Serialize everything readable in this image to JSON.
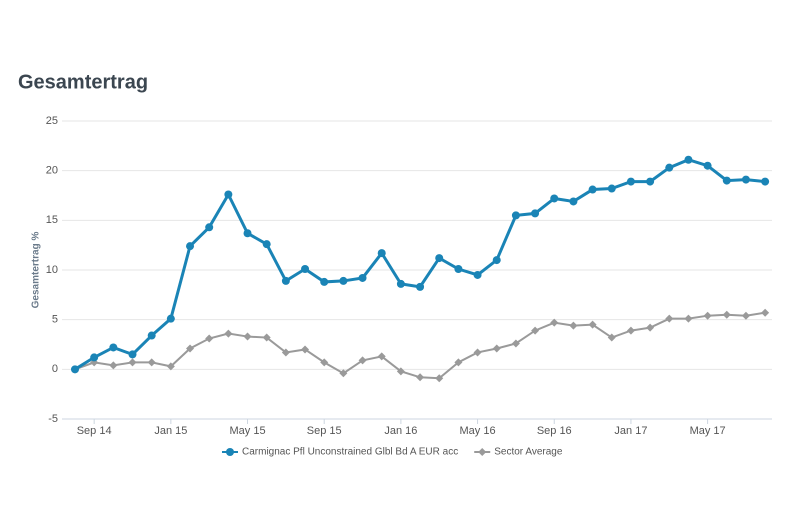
{
  "chart_data": {
    "type": "line",
    "title": "Gesamtertrag",
    "ylabel": "Gesamtertrag %",
    "categories": [
      null,
      "Sep 14",
      null,
      null,
      null,
      "Jan 15",
      null,
      null,
      null,
      "May 15",
      null,
      null,
      null,
      "Sep 15",
      null,
      null,
      null,
      "Jan 16",
      null,
      null,
      null,
      "May 16",
      null,
      null,
      null,
      "Sep 16",
      null,
      null,
      null,
      "Jan 17",
      null,
      null,
      null,
      "May 17",
      null,
      null,
      null
    ],
    "series": [
      {
        "name": "Carmignac Pfl Unconstrained Glbl Bd A EUR acc",
        "color": "#1a84b6",
        "marker": "circle",
        "values": [
          0,
          1.2,
          2.2,
          1.5,
          3.4,
          5.1,
          12.4,
          14.3,
          17.6,
          13.7,
          12.6,
          8.9,
          10.1,
          8.8,
          8.9,
          9.2,
          11.7,
          8.6,
          8.3,
          11.2,
          10.1,
          9.5,
          11.0,
          15.5,
          15.7,
          17.2,
          16.9,
          18.1,
          18.2,
          18.9,
          18.9,
          20.3,
          21.1,
          20.5,
          19.0,
          19.1,
          18.9
        ]
      },
      {
        "name": "Sector Average",
        "color": "#9a9a9a",
        "marker": "diamond",
        "values": [
          0,
          0.7,
          0.4,
          0.7,
          0.7,
          0.3,
          2.1,
          3.1,
          3.6,
          3.3,
          3.2,
          1.7,
          2.0,
          0.7,
          -0.4,
          0.9,
          1.3,
          -0.2,
          -0.8,
          -0.9,
          0.7,
          1.7,
          2.1,
          2.6,
          3.9,
          4.7,
          4.4,
          4.5,
          3.2,
          3.9,
          4.2,
          5.1,
          5.1,
          5.4,
          5.5,
          5.4,
          5.7
        ]
      }
    ],
    "ylim": [
      -5,
      25
    ],
    "yticks": [
      -5,
      0,
      5,
      10,
      15,
      20,
      25
    ],
    "grid": true,
    "legend": "bottom"
  }
}
